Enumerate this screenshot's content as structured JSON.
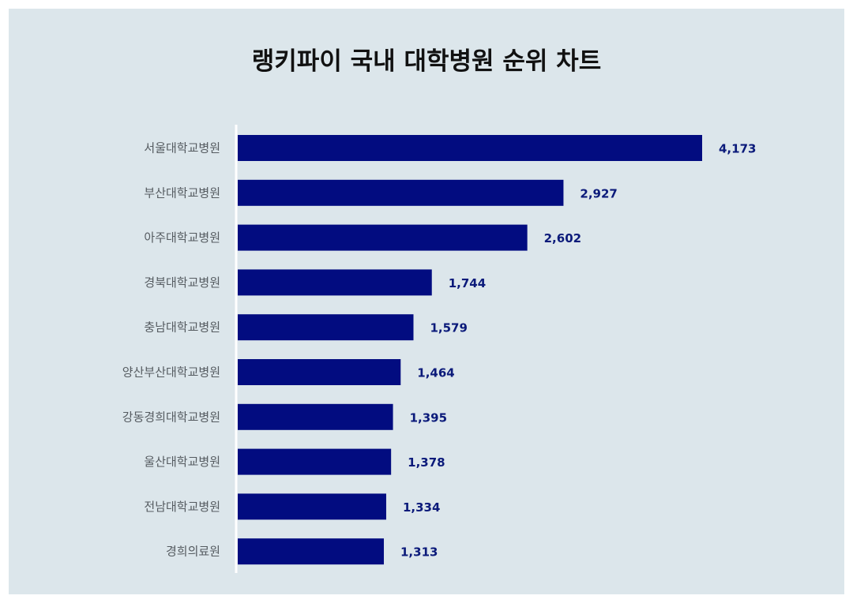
{
  "chart_data": {
    "type": "bar",
    "orientation": "horizontal",
    "title": "랭키파이 국내 대학병원 순위 차트",
    "categories": [
      "서울대학교병원",
      "부산대학교병원",
      "아주대학교병원",
      "경북대학교병원",
      "충남대학교병원",
      "양산부산대학교병원",
      "강동경희대학교병원",
      "울산대학교병원",
      "전남대학교병원",
      "경희의료원"
    ],
    "values": [
      4173,
      2927,
      2602,
      1744,
      1579,
      1464,
      1395,
      1378,
      1334,
      1313
    ],
    "value_labels": [
      "4,173",
      "2,927",
      "2,602",
      "1,744",
      "1,579",
      "1,464",
      "1,395",
      "1,378",
      "1,334",
      "1,313"
    ],
    "xlabel": "",
    "ylabel": "",
    "xlim": [
      0,
      5000
    ],
    "grid": false,
    "legend": "none",
    "colors": {
      "bar": "#020c80",
      "value_label": "#0b1a7a",
      "category_label": "#555b60",
      "axis": "#ffffff",
      "background": "#dce6eb"
    }
  }
}
